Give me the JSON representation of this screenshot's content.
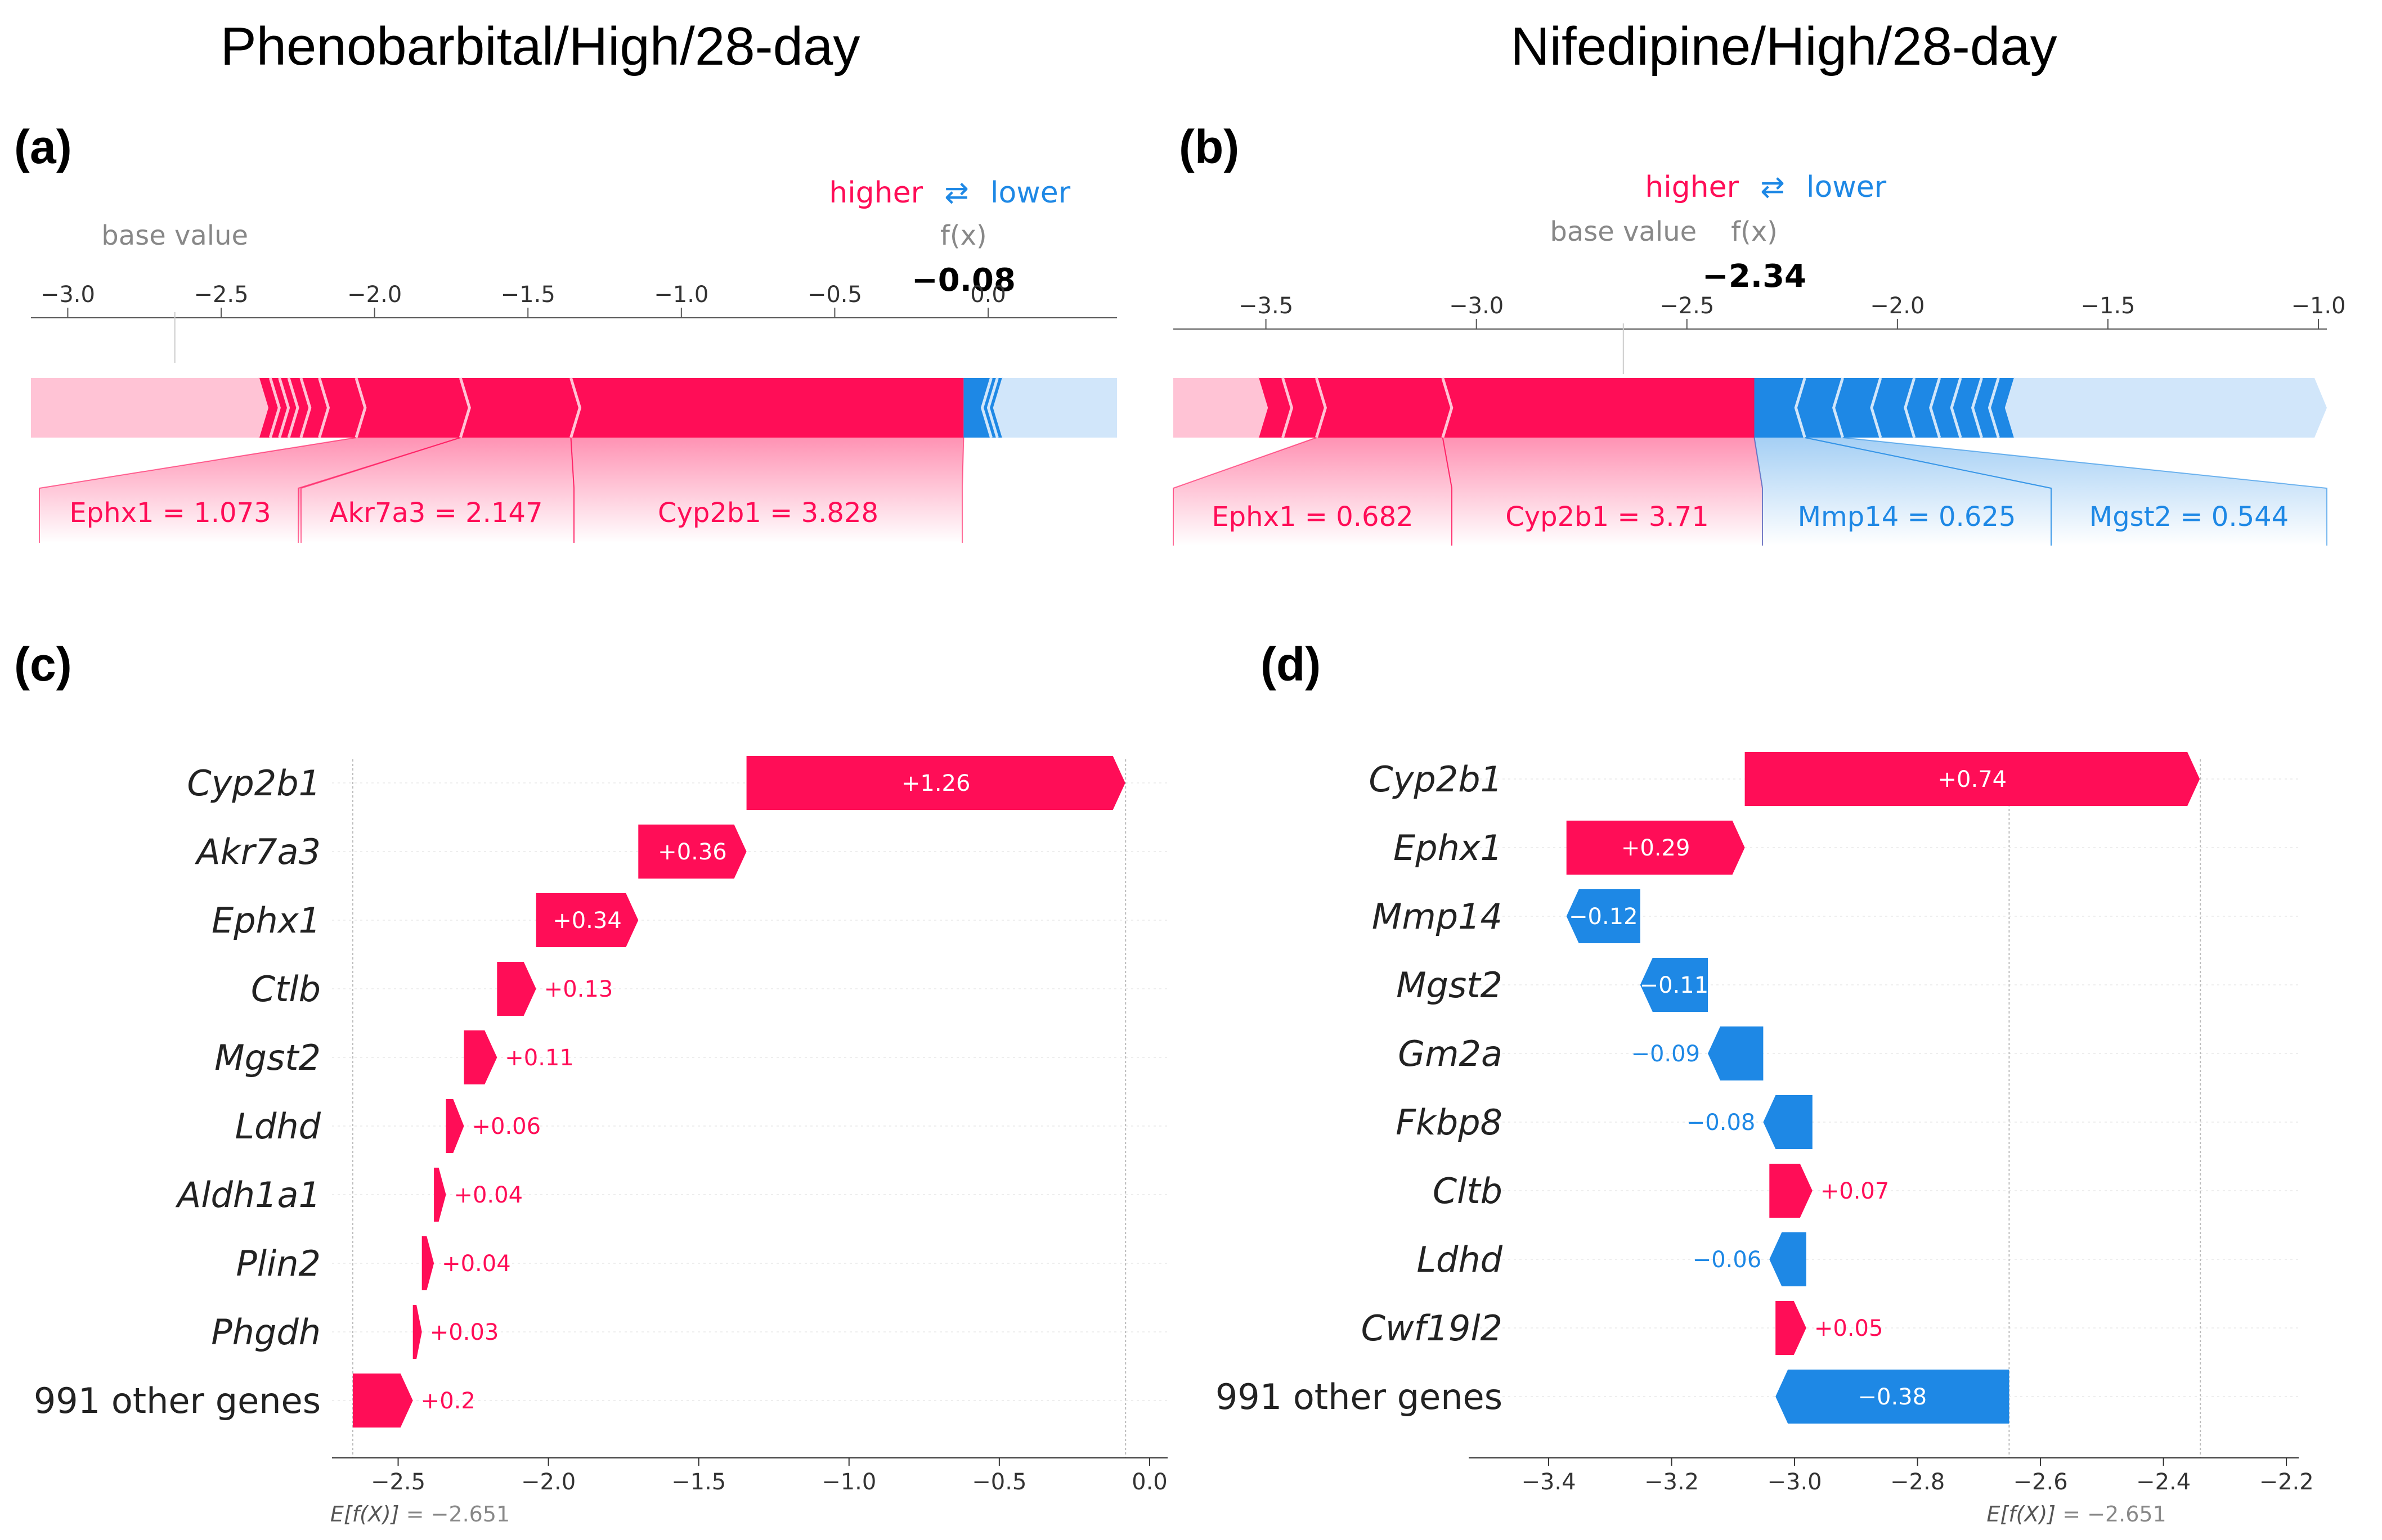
{
  "titles": {
    "left": "Phenobarbital/High/28-day",
    "right": "Nifedipine/High/28-day"
  },
  "panel_labels": [
    "(a)",
    "(b)",
    "(c)",
    "(d)"
  ],
  "force_common": {
    "higher": "higher",
    "arrows": "⇄",
    "lower": "lower",
    "base_value_label": "base value",
    "fx_label": "f(x)"
  },
  "chart_data": [
    {
      "panel": "a",
      "type": "force",
      "base_value": -2.651,
      "output_value": -0.08,
      "output_label": "−0.08",
      "xlim": [
        -3.12,
        0.42
      ],
      "ticks": [
        -3.0,
        -2.5,
        -2.0,
        -1.5,
        -1.0,
        -0.5,
        0.0
      ],
      "tick_labels": [
        "−3.0",
        "−2.5",
        "−2.0",
        "−1.5",
        "−1.0",
        "−0.5",
        "0.0"
      ],
      "labeled_features": [
        {
          "label": "Ephx1 = 1.073",
          "sign": "pos",
          "value": 0.34
        },
        {
          "label": "Akr7a3 = 2.147",
          "sign": "pos",
          "value": 0.36
        },
        {
          "label": "Cyp2b1 = 3.828",
          "sign": "pos",
          "value": 1.26
        }
      ],
      "positive_segments": [
        -2.38,
        -2.34,
        -2.31,
        -2.28,
        -2.24,
        -2.18,
        -2.06,
        -1.72,
        -1.36
      ],
      "negative_segments": [
        0.01,
        0.03,
        0.05
      ]
    },
    {
      "panel": "b",
      "type": "force",
      "base_value": -2.651,
      "output_value": -2.34,
      "output_label": "−2.34",
      "xlim": [
        -3.72,
        -0.98
      ],
      "ticks": [
        -3.5,
        -3.0,
        -2.5,
        -2.0,
        -1.5,
        -1.0
      ],
      "tick_labels": [
        "−3.5",
        "−3.0",
        "−2.5",
        "−2.0",
        "−1.5",
        "−1.0"
      ],
      "labeled_features": [
        {
          "label": "Ephx1 = 0.682",
          "sign": "pos",
          "value": 0.29
        },
        {
          "label": "Cyp2b1 = 3.71",
          "sign": "pos",
          "value": 0.74
        },
        {
          "label": "Mmp14 = 0.625",
          "sign": "neg",
          "value": -0.12
        },
        {
          "label": "Mgst2 = 0.544",
          "sign": "neg",
          "value": -0.11
        }
      ],
      "positive_segments": [
        -3.52,
        -3.46,
        -3.38,
        -3.08
      ],
      "negative_segments": [
        -2.22,
        -2.13,
        -2.04,
        -1.96,
        -1.9,
        -1.85,
        -1.8,
        -1.76,
        -1.72
      ]
    },
    {
      "panel": "c",
      "type": "waterfall",
      "xlim": [
        -2.72,
        0.06
      ],
      "ticks": [
        -2.5,
        -2.0,
        -1.5,
        -1.0,
        -0.5,
        0.0
      ],
      "tick_labels": [
        "−2.5",
        "−2.0",
        "−1.5",
        "−1.0",
        "−0.5",
        "0.0"
      ],
      "base_value": -2.651,
      "base_label": "E[f(X)]",
      "base_value_label": "= −2.651",
      "final_value": -0.08,
      "features": [
        {
          "name": "Cyp2b1",
          "value": 1.26,
          "label": "+1.26"
        },
        {
          "name": "Akr7a3",
          "value": 0.36,
          "label": "+0.36"
        },
        {
          "name": "Ephx1",
          "value": 0.34,
          "label": "+0.34"
        },
        {
          "name": "Ctlb",
          "value": 0.13,
          "label": "+0.13"
        },
        {
          "name": "Mgst2",
          "value": 0.11,
          "label": "+0.11"
        },
        {
          "name": "Ldhd",
          "value": 0.06,
          "label": "+0.06"
        },
        {
          "name": "Aldh1a1",
          "value": 0.04,
          "label": "+0.04"
        },
        {
          "name": "Plin2",
          "value": 0.04,
          "label": "+0.04"
        },
        {
          "name": "Phgdh",
          "value": 0.03,
          "label": "+0.03"
        },
        {
          "name": "991 other genes",
          "value": 0.2,
          "label": "+0.2",
          "plain": true
        }
      ]
    },
    {
      "panel": "d",
      "type": "waterfall",
      "xlim": [
        -3.53,
        -2.18
      ],
      "ticks": [
        -3.4,
        -3.2,
        -3.0,
        -2.8,
        -2.6,
        -2.4,
        -2.2
      ],
      "tick_labels": [
        "−3.4",
        "−3.2",
        "−3.0",
        "−2.8",
        "−2.6",
        "−2.4",
        "−2.2"
      ],
      "base_value": -2.651,
      "base_label": "E[f(X)]",
      "base_value_label": "= −2.651",
      "final_value": -2.34,
      "features": [
        {
          "name": "Cyp2b1",
          "value": 0.74,
          "label": "+0.74"
        },
        {
          "name": "Ephx1",
          "value": 0.29,
          "label": "+0.29"
        },
        {
          "name": "Mmp14",
          "value": -0.12,
          "label": "−0.12"
        },
        {
          "name": "Mgst2",
          "value": -0.11,
          "label": "−0.11"
        },
        {
          "name": "Gm2a",
          "value": -0.09,
          "label": "−0.09"
        },
        {
          "name": "Fkbp8",
          "value": -0.08,
          "label": "−0.08"
        },
        {
          "name": "Cltb",
          "value": 0.07,
          "label": "+0.07"
        },
        {
          "name": "Ldhd",
          "value": -0.06,
          "label": "−0.06"
        },
        {
          "name": "Cwf19l2",
          "value": 0.05,
          "label": "+0.05"
        },
        {
          "name": "991 other genes",
          "value": -0.38,
          "label": "−0.38",
          "plain": true
        }
      ]
    }
  ],
  "colors": {
    "positive": "#ff0d57",
    "negative": "#1e88e5",
    "positive_light": "#ffc3d5",
    "negative_light": "#d1e6fa"
  }
}
